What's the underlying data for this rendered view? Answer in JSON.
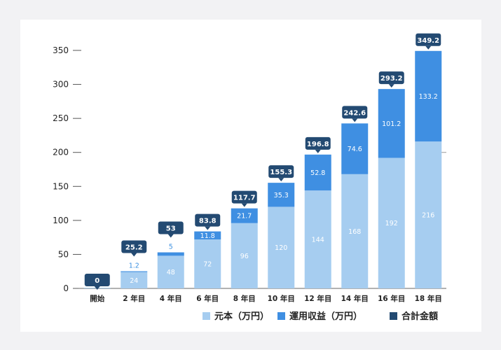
{
  "colors": {
    "principal": "#a6cdf0",
    "returns": "#3f8fe2",
    "total": "#234a72",
    "axis": "#555555"
  },
  "chart_data": {
    "type": "bar",
    "stacked": true,
    "categories": [
      "開始",
      "2 年目",
      "4 年目",
      "6 年目",
      "8 年目",
      "10 年目",
      "12 年目",
      "14 年目",
      "16 年目",
      "18 年目"
    ],
    "series": [
      {
        "name": "元本（万円）",
        "values": [
          0,
          24,
          48,
          72,
          96,
          120,
          144,
          168,
          192,
          216
        ],
        "labels": [
          "",
          "24",
          "48",
          "72",
          "96",
          "120",
          "144",
          "168",
          "192",
          "216"
        ]
      },
      {
        "name": "運用収益（万円）",
        "values": [
          0,
          1.2,
          5,
          11.8,
          21.7,
          35.3,
          52.8,
          74.6,
          101.2,
          133.2
        ],
        "labels": [
          "",
          "1.2",
          "5",
          "11.8",
          "21.7",
          "35.3",
          "52.8",
          "74.6",
          "101.2",
          "133.2"
        ]
      }
    ],
    "totals": {
      "name": "合計金額",
      "values": [
        0,
        25.2,
        53,
        83.8,
        117.7,
        155.3,
        196.8,
        242.6,
        293.2,
        349.2
      ],
      "labels": [
        "0",
        "25.2",
        "53",
        "83.8",
        "117.7",
        "155.3",
        "196.8",
        "242.6",
        "293.2",
        "349.2"
      ]
    },
    "yticks": [
      0,
      50,
      100,
      150,
      200,
      250,
      300,
      350
    ],
    "ylim": [
      0,
      350
    ],
    "legend_position": "bottom-right",
    "grid": false
  }
}
